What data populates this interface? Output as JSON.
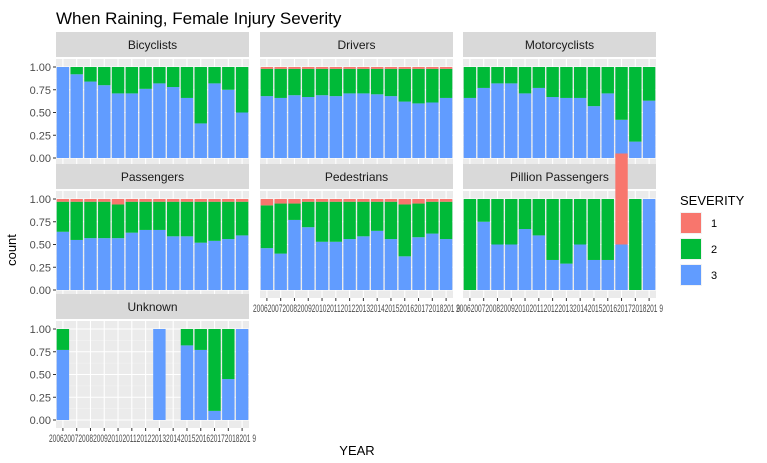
{
  "chart_data": {
    "type": "bar",
    "stacked": "fill",
    "title": "When Raining, Female Injury Severity",
    "xlabel": "YEAR",
    "ylabel": "count",
    "ylim": [
      0,
      1
    ],
    "y_ticks": [
      "0.00",
      "0.25",
      "0.50",
      "0.75",
      "1.00"
    ],
    "x_tick_text": "2006200720082009201020112012201320142015201620172018201 9",
    "years": [
      "2006",
      "2007",
      "2008",
      "2009",
      "2010",
      "2011",
      "2012",
      "2013",
      "2014",
      "2015",
      "2016",
      "2017",
      "2018",
      "2019"
    ],
    "legend": {
      "title": "SEVERITY",
      "placement": "right",
      "entries": [
        {
          "label": "1",
          "color": "#F8766D"
        },
        {
          "label": "2",
          "color": "#00BA38"
        },
        {
          "label": "3",
          "color": "#619CFF"
        }
      ]
    },
    "panels": [
      {
        "name": "Bicyclists",
        "s1": [
          0,
          0,
          0,
          0,
          0,
          0,
          0,
          0,
          0,
          0,
          0,
          0,
          0,
          0
        ],
        "s3": [
          1.0,
          0.92,
          0.84,
          0.8,
          0.71,
          0.71,
          0.76,
          0.82,
          0.78,
          0.66,
          0.38,
          0.82,
          0.75,
          0.5
        ]
      },
      {
        "name": "Drivers",
        "s1": [
          0.02,
          0.02,
          0.02,
          0.02,
          0.02,
          0.02,
          0.02,
          0.02,
          0.02,
          0.02,
          0.02,
          0.02,
          0.02,
          0.02
        ],
        "s3": [
          0.68,
          0.66,
          0.69,
          0.67,
          0.69,
          0.68,
          0.71,
          0.71,
          0.7,
          0.68,
          0.62,
          0.6,
          0.61,
          0.66
        ]
      },
      {
        "name": "Motorcyclists",
        "s1": [
          0,
          0,
          0,
          0,
          0,
          0,
          0,
          0,
          0,
          0,
          0,
          0,
          0,
          0
        ],
        "s3": [
          0.66,
          0.77,
          0.82,
          0.82,
          0.71,
          0.77,
          0.67,
          0.66,
          0.66,
          0.57,
          0.71,
          0.42,
          0.18,
          0.63
        ]
      },
      {
        "name": "Passengers",
        "s1": [
          0.03,
          0.03,
          0.03,
          0.03,
          0.06,
          0.03,
          0.03,
          0.03,
          0.03,
          0.03,
          0.03,
          0.03,
          0.03,
          0.03
        ],
        "s3": [
          0.64,
          0.55,
          0.57,
          0.57,
          0.57,
          0.63,
          0.66,
          0.66,
          0.59,
          0.59,
          0.52,
          0.54,
          0.56,
          0.6
        ]
      },
      {
        "name": "Pedestrians",
        "s1": [
          0.07,
          0.05,
          0.05,
          0.03,
          0.03,
          0.03,
          0.03,
          0.03,
          0.03,
          0.03,
          0.06,
          0.05,
          0.03,
          0.03
        ],
        "s3": [
          0.46,
          0.4,
          0.77,
          0.69,
          0.53,
          0.53,
          0.56,
          0.59,
          0.65,
          0.56,
          0.37,
          0.58,
          0.62,
          0.56
        ]
      },
      {
        "name": "Pillion Passengers",
        "s1": [
          0,
          0,
          0,
          0,
          0,
          0,
          0,
          0,
          0,
          0,
          0,
          1.0,
          0,
          0
        ],
        "s3": [
          0,
          0.75,
          0.5,
          0.5,
          0.67,
          0.6,
          0.33,
          0.29,
          0.5,
          0.33,
          0.33,
          0.5,
          0.0,
          1.0
        ]
      },
      {
        "name": "Unknown",
        "present": [
          true,
          false,
          false,
          false,
          false,
          false,
          false,
          true,
          false,
          true,
          true,
          true,
          true,
          true
        ],
        "s1": [
          0,
          0,
          0,
          0,
          0,
          0,
          0,
          0,
          0,
          0,
          0,
          0,
          0,
          0
        ],
        "s3": [
          0.77,
          0,
          0,
          0,
          0,
          0,
          0,
          1.0,
          0,
          0.82,
          0.77,
          0.1,
          0.45,
          1.0
        ]
      }
    ]
  }
}
